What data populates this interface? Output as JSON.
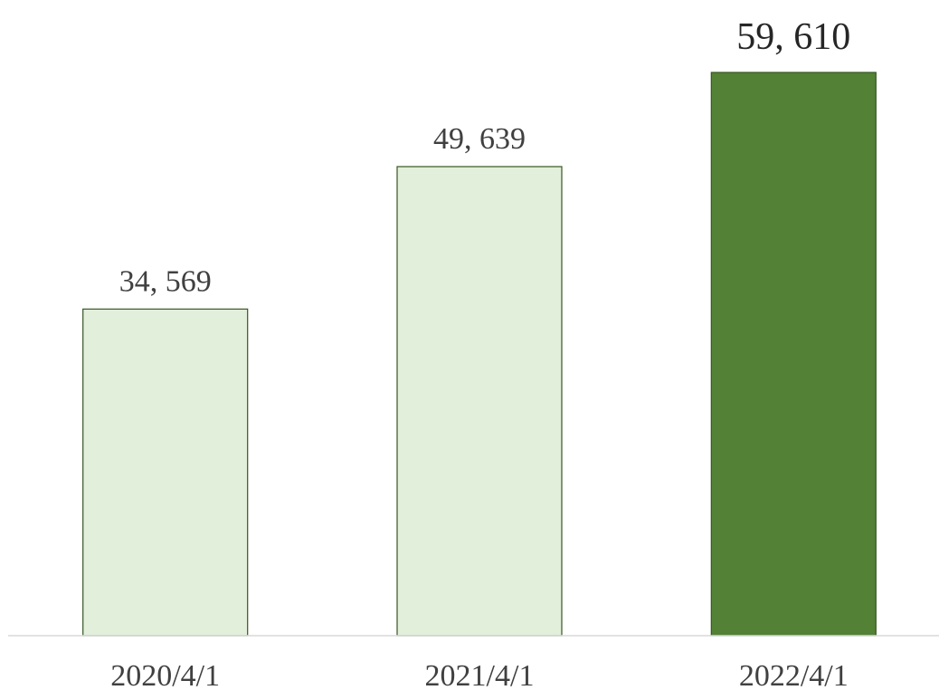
{
  "chart_data": {
    "type": "bar",
    "categories": [
      "2020/4/1",
      "2021/4/1",
      "2022/4/1"
    ],
    "values": [
      34569,
      49639,
      59610
    ],
    "data_labels": [
      "34, 569",
      "49, 639",
      "59, 610"
    ],
    "highlight_index": 2,
    "title": "",
    "xlabel": "",
    "ylabel": "",
    "ylim": [
      0,
      59610
    ],
    "grid": false,
    "legend": "none",
    "colors": {
      "bar_fill": "#e2efda",
      "bar_stroke": "#375623",
      "highlight_fill": "#538135",
      "highlight_stroke": "#375623",
      "axis_line": "#d9d9d9"
    }
  }
}
